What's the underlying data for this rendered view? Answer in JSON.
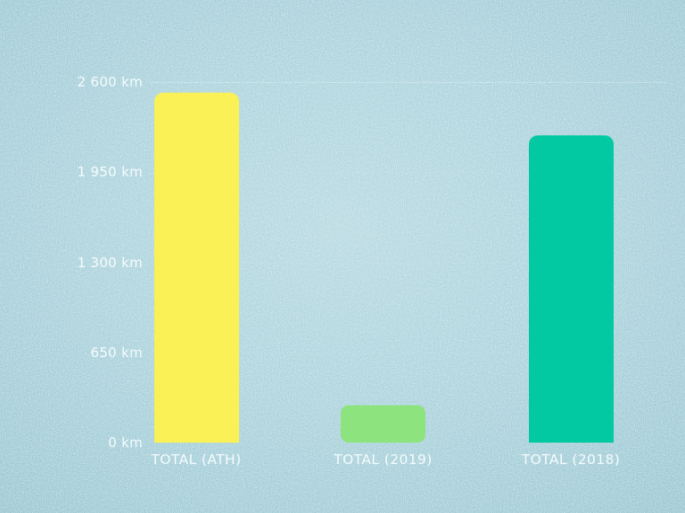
{
  "chart_data": {
    "type": "bar",
    "title": "",
    "xlabel": "",
    "ylabel": "",
    "unit": "km",
    "categories": [
      "TOTAL (ATH)",
      "TOTAL (2019)",
      "TOTAL (2018)"
    ],
    "values": [
      2520,
      270,
      2215
    ],
    "bar_colors": [
      "#f9f155",
      "#8de47e",
      "#02c9a2"
    ],
    "ylim": [
      0,
      2600
    ],
    "yticks": [
      0,
      650,
      1300,
      1950,
      2600
    ],
    "ytick_labels": [
      "0 km",
      "650 km",
      "1 300 km",
      "1 950 km",
      "2 600 km"
    ],
    "legend_position": "none",
    "grid": "horizontal-faint-top"
  },
  "style": {
    "background_center": "#b4d8e0",
    "background_edge": "#78acbc",
    "text_color": "#fafeff",
    "texture": "speckled-glitter-paper"
  }
}
